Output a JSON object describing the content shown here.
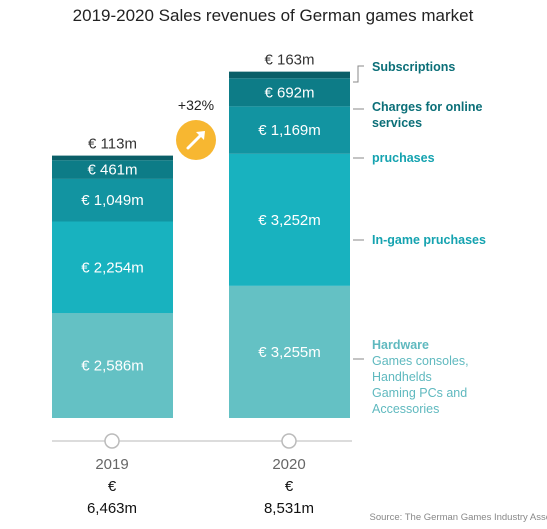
{
  "chart_data": {
    "type": "bar",
    "stacked": true,
    "title": "2019-2020 Sales revenues of German games market",
    "categories": [
      "2019",
      "2020"
    ],
    "series": [
      {
        "name": "Hardware",
        "values": [
          2586,
          3255
        ],
        "labels": [
          "€ 2,586m",
          "€ 3,255m"
        ],
        "color": "#64c1c4"
      },
      {
        "name": "In-game pruchases",
        "values": [
          2254,
          3252
        ],
        "labels": [
          "€ 2,254m",
          "€ 3,252m"
        ],
        "color": "#18b2bf"
      },
      {
        "name": "pruchases",
        "values": [
          1049,
          1169
        ],
        "labels": [
          "€ 1,049m",
          "€ 1,169m"
        ],
        "color": "#1294a1"
      },
      {
        "name": "Charges for online services",
        "values": [
          461,
          692
        ],
        "labels": [
          "€ 461m",
          "€ 692m"
        ],
        "color": "#0d7c87"
      },
      {
        "name": "Subscriptions",
        "values": [
          113,
          163
        ],
        "labels": [
          "€ 113m",
          "€ 163m"
        ],
        "color": "#0a5f68"
      }
    ],
    "totals": [
      {
        "currency": "€",
        "amount": "6,463m"
      },
      {
        "currency": "€",
        "amount": "8,531m"
      }
    ],
    "growth_label": "+32%",
    "legend": {
      "subscriptions": "Subscriptions",
      "online_line1": "Charges for online",
      "online_line2": "services",
      "purchases": "pruchases",
      "ingame": "In-game pruchases",
      "hardware_title": "Hardware",
      "hardware_lines": [
        "Games consoles,",
        "Handhelds",
        "Gaming PCs and",
        "Accessories"
      ]
    },
    "legend_colors": {
      "dark": "#0b6f78",
      "mid": "#15a3b0",
      "light": "#5fb9bf"
    },
    "source": "Source: The German Games Industry Association",
    "ylim": [
      0,
      8531
    ]
  }
}
